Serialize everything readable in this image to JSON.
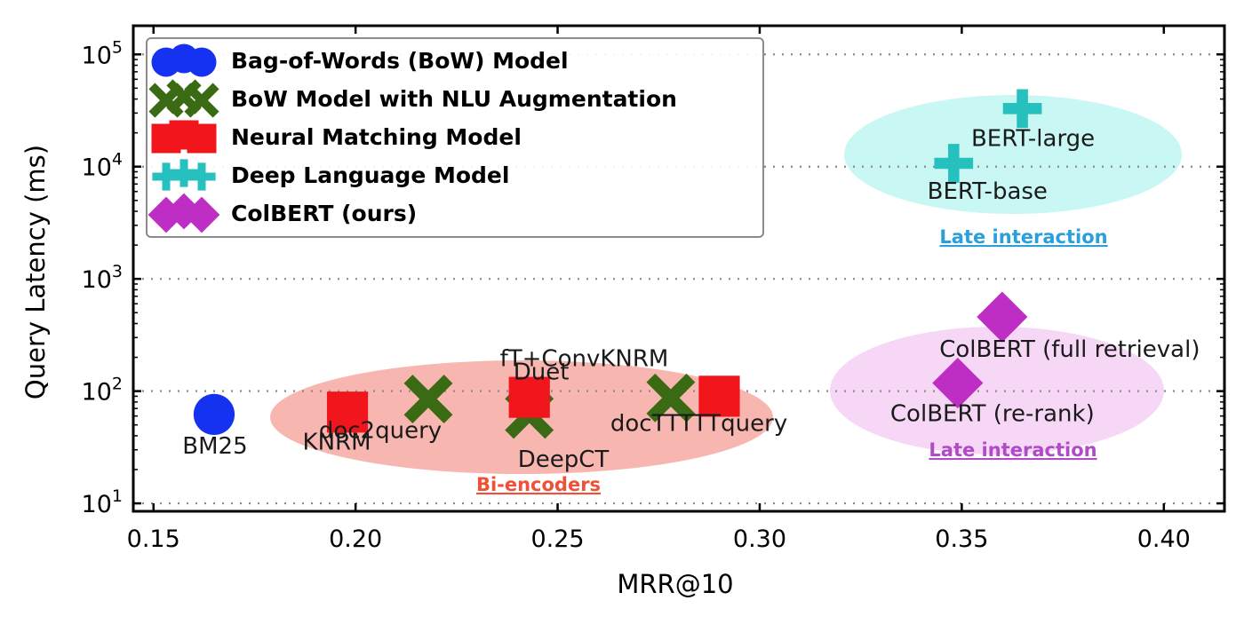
{
  "chart_data": {
    "type": "scatter",
    "title": "",
    "xlabel": "MRR@10",
    "ylabel": "Query Latency (ms)",
    "xlim": [
      0.145,
      0.415
    ],
    "ylim": [
      8.5,
      180000
    ],
    "yscale": "log",
    "x_ticks": [
      0.15,
      0.2,
      0.25,
      0.3,
      0.35,
      0.4
    ],
    "x_tick_labels": [
      "0.15",
      "0.20",
      "0.25",
      "0.30",
      "0.35",
      "0.40"
    ],
    "y_ticks": [
      10,
      100,
      1000,
      10000,
      100000
    ],
    "y_tick_labels": [
      {
        "base": "10",
        "exp": "1"
      },
      {
        "base": "10",
        "exp": "2"
      },
      {
        "base": "10",
        "exp": "3"
      },
      {
        "base": "10",
        "exp": "4"
      },
      {
        "base": "10",
        "exp": "5"
      }
    ],
    "grid": "horizontal dotted",
    "legend_position": "top-left",
    "series": [
      {
        "name": "Bag-of-Words (BoW) Model",
        "marker": "circle",
        "color": "#1432f0",
        "points": [
          {
            "label": "BM25",
            "x": 0.165,
            "y": 62
          }
        ]
      },
      {
        "name": "BoW Model with NLU Augmentation",
        "marker": "x",
        "color": "#3a6b14",
        "points": [
          {
            "label": "doc2query",
            "x": 0.218,
            "y": 85
          },
          {
            "label": "DeepCT",
            "x": 0.243,
            "y": 62
          },
          {
            "label": "docTTTTTquery",
            "x": 0.278,
            "y": 87
          }
        ]
      },
      {
        "name": "Neural Matching Model",
        "marker": "square",
        "color": "#f0161c",
        "points": [
          {
            "label": "KNRM",
            "x": 0.198,
            "y": 65
          },
          {
            "label": "Duet",
            "x": 0.243,
            "y": 88
          },
          {
            "label": "fT+ConvKNRM",
            "x": 0.29,
            "y": 90
          }
        ]
      },
      {
        "name": "Deep Language Model",
        "marker": "plus",
        "color": "#26c1bf",
        "points": [
          {
            "label": "BERT-base",
            "x": 0.348,
            "y": 10700
          },
          {
            "label": "BERT-large",
            "x": 0.365,
            "y": 32900
          }
        ]
      },
      {
        "name": "ColBERT (ours)",
        "marker": "diamond",
        "color": "#bf2ec4",
        "points": [
          {
            "label": "ColBERT (re-rank)",
            "x": 0.349,
            "y": 118
          },
          {
            "label": "ColBERT (full retrieval)",
            "x": 0.36,
            "y": 458
          }
        ]
      }
    ],
    "regions": [
      {
        "label": "Bi-encoders",
        "fill": "#f8b6b0",
        "text_color": "#f04f38"
      },
      {
        "label": "Late interaction",
        "fill": "#c9f7f4",
        "text_color": "#2a9fd8"
      },
      {
        "label": "Late interaction",
        "fill": "#f6d8f6",
        "text_color": "#b04ac6"
      }
    ]
  }
}
